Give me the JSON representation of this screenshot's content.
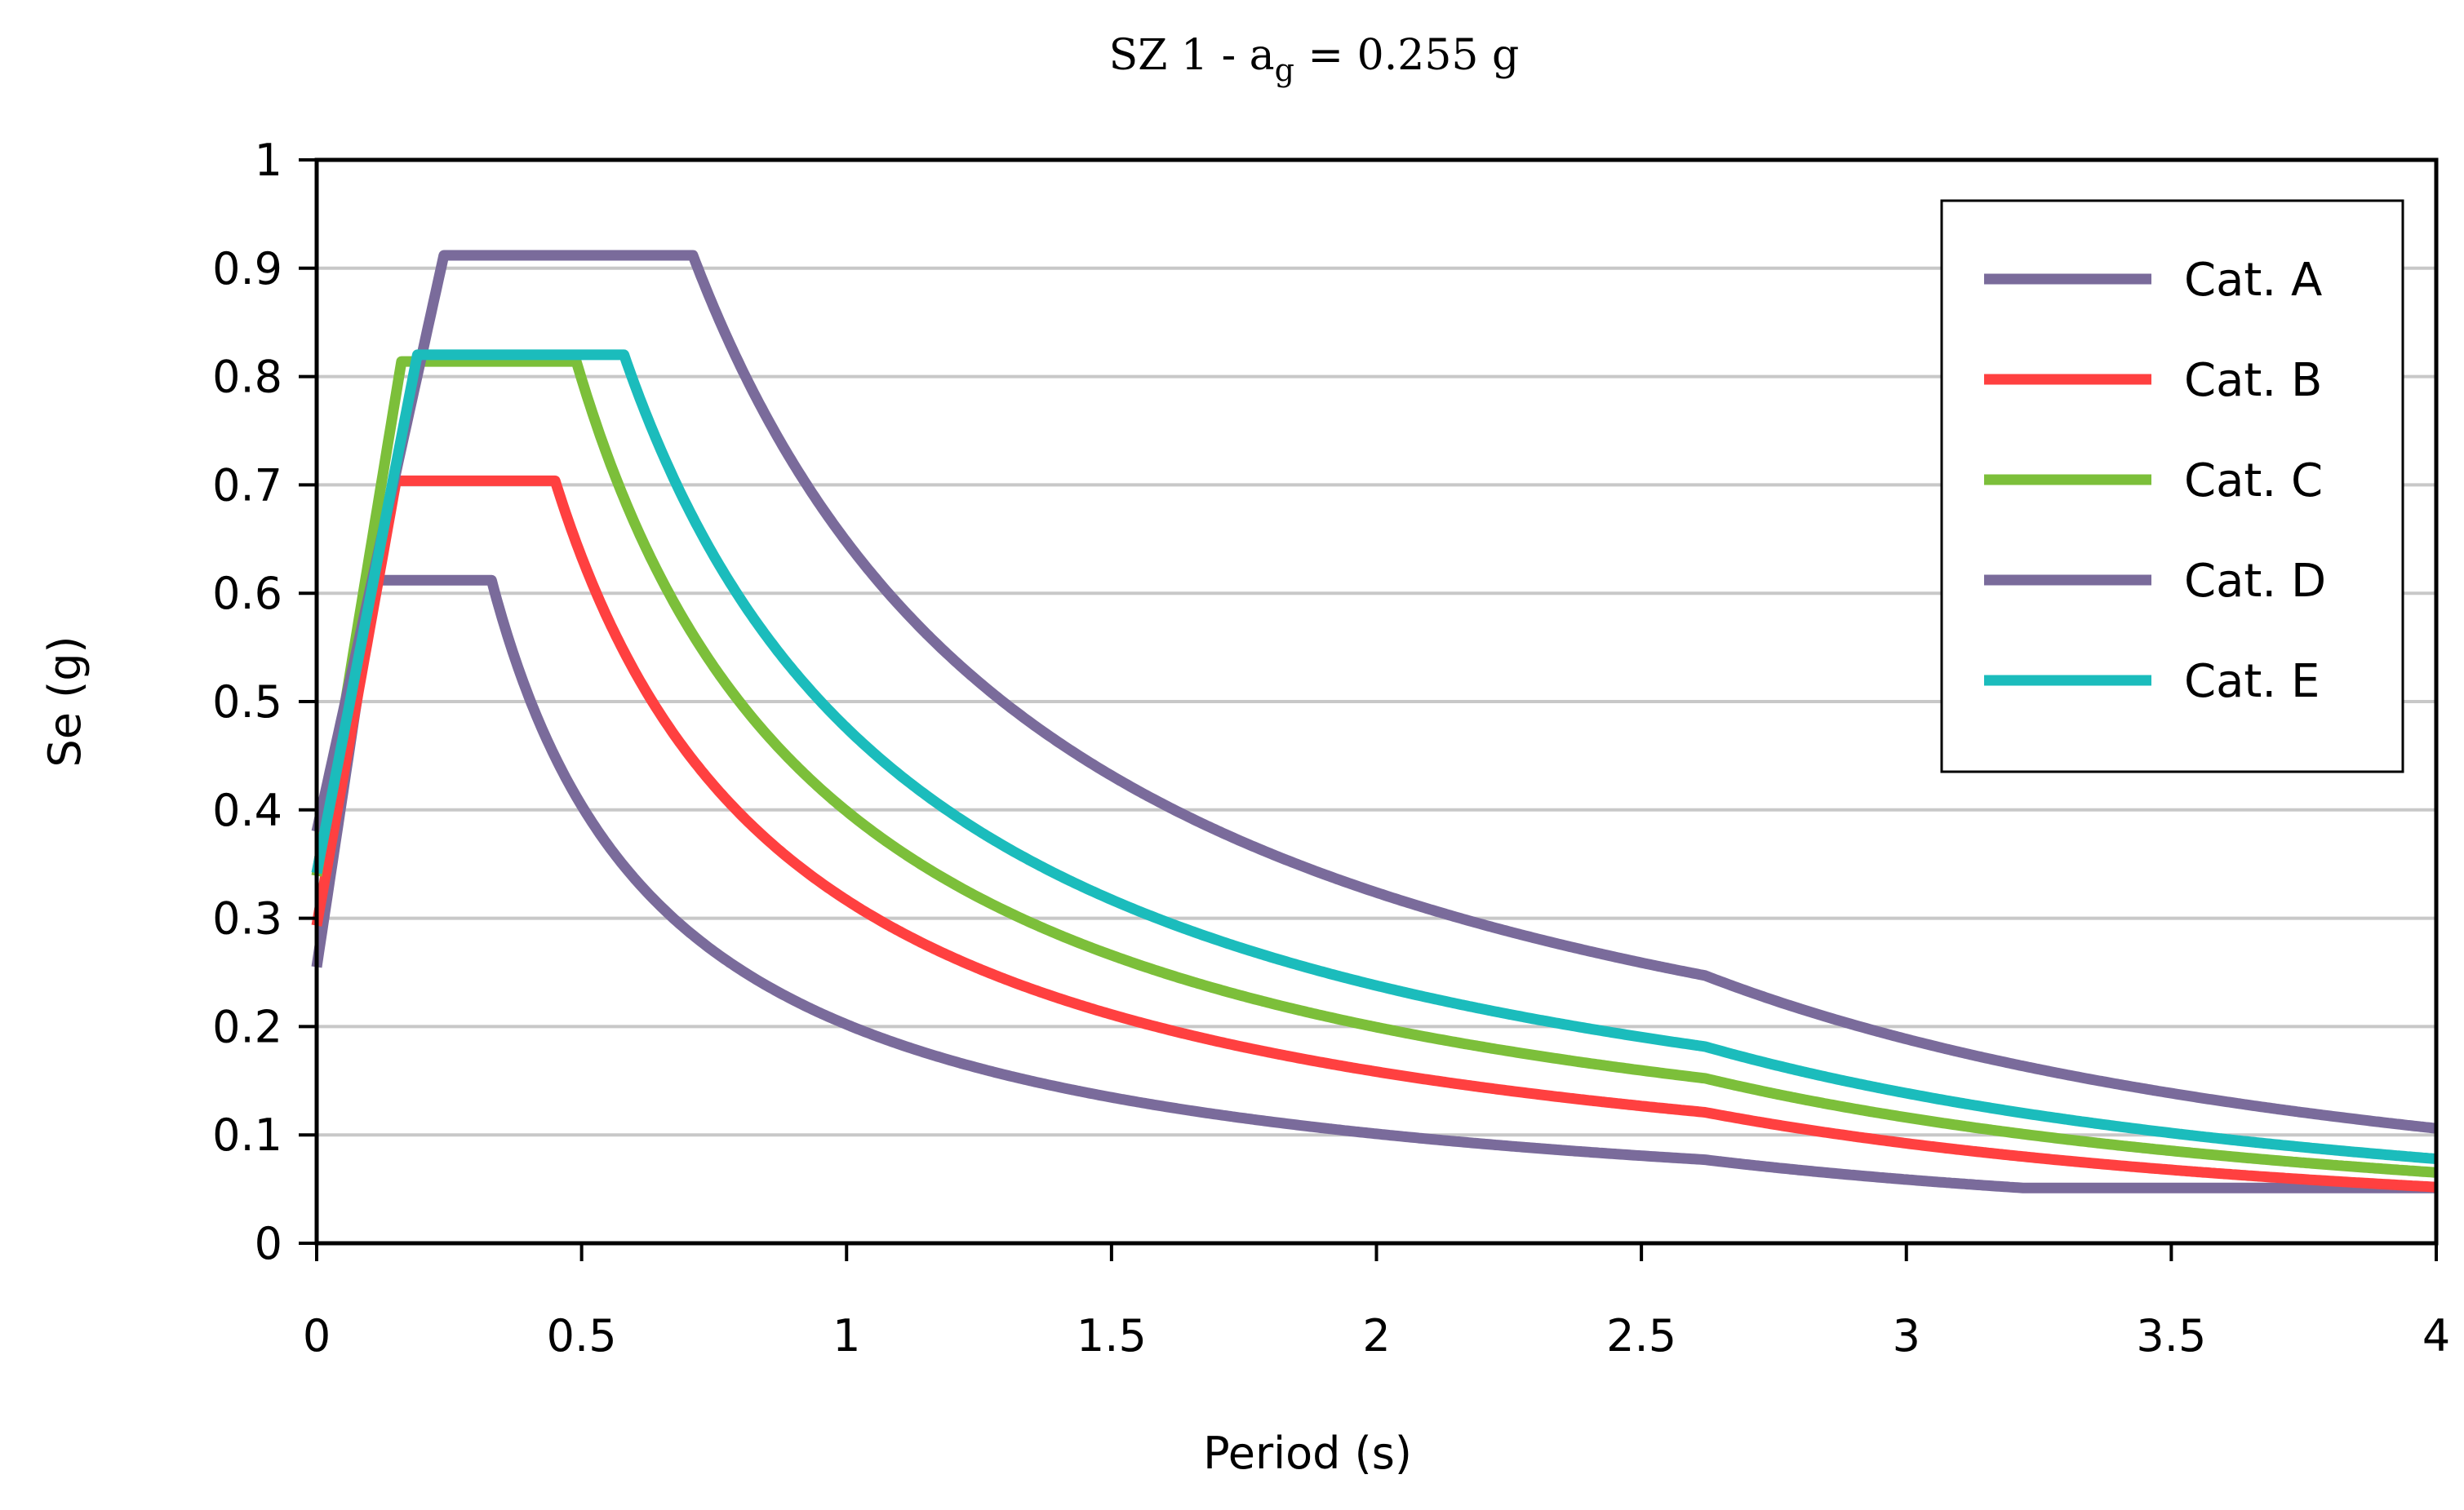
{
  "chart_data": {
    "type": "line",
    "title": {
      "prefix": "SZ 1 - a",
      "subscript": "g",
      "suffix": " = 0.255 g"
    },
    "xlabel": "Period (s)",
    "ylabel": "Se (g)",
    "xlim": [
      0,
      4
    ],
    "ylim": [
      0,
      1
    ],
    "xticks": [
      0,
      0.5,
      1,
      1.5,
      2,
      2.5,
      3,
      3.5,
      4
    ],
    "xtick_labels": [
      "0",
      "0.5",
      "1",
      "1.5",
      "2",
      "2.5",
      "3",
      "3.5",
      "4"
    ],
    "yticks": [
      0,
      0.1,
      0.2,
      0.3,
      0.4,
      0.5,
      0.6,
      0.7,
      0.8,
      0.9,
      1
    ],
    "ytick_labels": [
      "0",
      "0.1",
      "0.2",
      "0.3",
      "0.4",
      "0.5",
      "0.6",
      "0.7",
      "0.8",
      "0.9",
      "1"
    ],
    "grid": true,
    "legend_position": "top-right",
    "series": [
      {
        "name": "Cat. A",
        "color": "#7a6b9b",
        "params": {
          "S": 1.0,
          "F0": 2.4,
          "TB": 0.11,
          "TC": 0.33,
          "TD": 2.62,
          "floor": 0.051
        }
      },
      {
        "name": "Cat. B",
        "color": "#ff4040",
        "params": {
          "S": 1.15,
          "F0": 2.4,
          "TB": 0.15,
          "TC": 0.45,
          "TD": 2.62,
          "floor": 0.051
        }
      },
      {
        "name": "Cat. C",
        "color": "#7cbf3a",
        "params": {
          "S": 1.33,
          "F0": 2.4,
          "TB": 0.16,
          "TC": 0.49,
          "TD": 2.62,
          "floor": 0.051
        }
      },
      {
        "name": "Cat. D",
        "color": "#7a6b9b",
        "params": {
          "S": 1.49,
          "F0": 2.4,
          "TB": 0.24,
          "TC": 0.71,
          "TD": 2.62,
          "floor": 0.051
        }
      },
      {
        "name": "Cat. E",
        "color": "#1bbcbc",
        "params": {
          "S": 1.34,
          "F0": 2.4,
          "TB": 0.19,
          "TC": 0.58,
          "TD": 2.62,
          "floor": 0.051
        }
      }
    ]
  }
}
